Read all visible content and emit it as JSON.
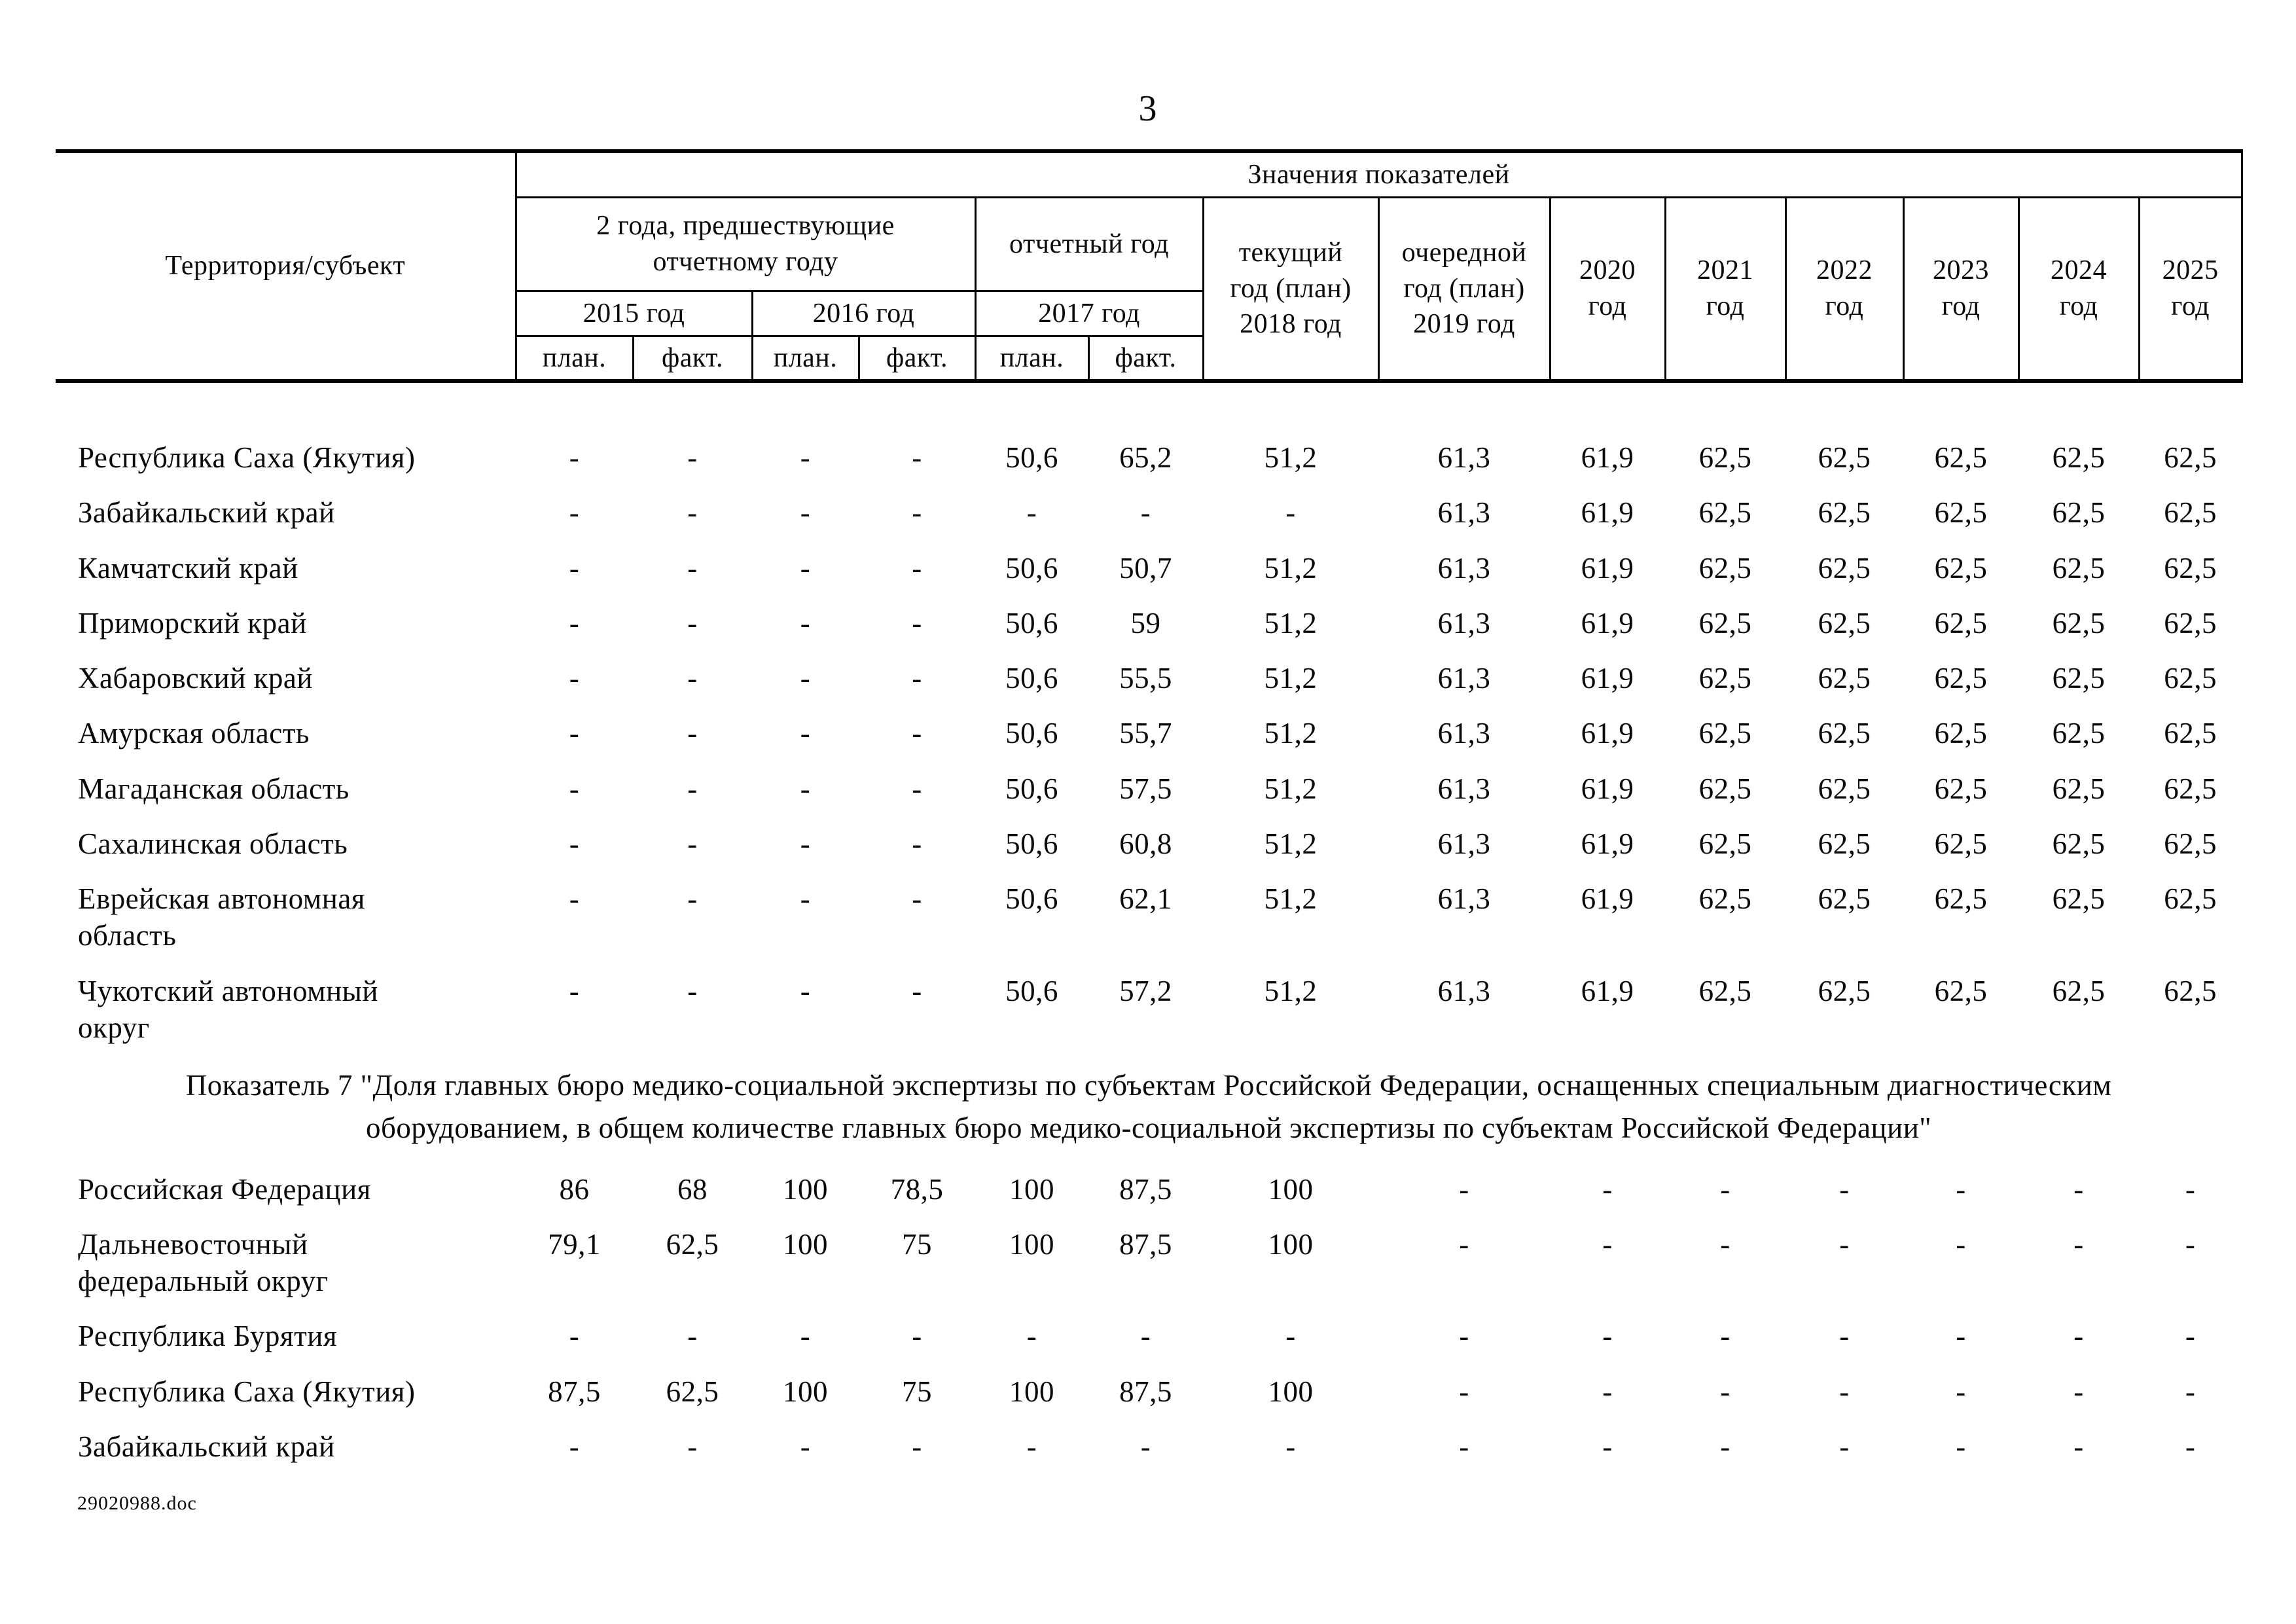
{
  "page": {
    "number": "3",
    "footer": "29020988.doc"
  },
  "header": {
    "territory": "Территория/субъект",
    "values": "Значения показателей",
    "two_years_group": "2 года, предшествующие\nотчетному году",
    "reporting_year_group": "отчетный год",
    "current_year": "текущий\nгод (план)\n2018 год",
    "next_year": "очередной\nгод (план)\n2019 год",
    "sub_years": [
      "2015 год",
      "2016 год",
      "2017 год"
    ],
    "plan": "план.",
    "fact": "факт.",
    "future_years": [
      "2020\nгод",
      "2021\nгод",
      "2022\nгод",
      "2023\nгод",
      "2024\nгод",
      "2025\nгод"
    ]
  },
  "section1": {
    "rows": [
      {
        "name": "Республика Саха (Якутия)",
        "values": [
          "-",
          "-",
          "-",
          "-",
          "50,6",
          "65,2",
          "51,2",
          "61,3",
          "61,9",
          "62,5",
          "62,5",
          "62,5",
          "62,5",
          "62,5"
        ]
      },
      {
        "name": "Забайкальский край",
        "values": [
          "-",
          "-",
          "-",
          "-",
          "-",
          "-",
          "-",
          "61,3",
          "61,9",
          "62,5",
          "62,5",
          "62,5",
          "62,5",
          "62,5"
        ]
      },
      {
        "name": "Камчатский край",
        "values": [
          "-",
          "-",
          "-",
          "-",
          "50,6",
          "50,7",
          "51,2",
          "61,3",
          "61,9",
          "62,5",
          "62,5",
          "62,5",
          "62,5",
          "62,5"
        ]
      },
      {
        "name": "Приморский край",
        "values": [
          "-",
          "-",
          "-",
          "-",
          "50,6",
          "59",
          "51,2",
          "61,3",
          "61,9",
          "62,5",
          "62,5",
          "62,5",
          "62,5",
          "62,5"
        ]
      },
      {
        "name": "Хабаровский край",
        "values": [
          "-",
          "-",
          "-",
          "-",
          "50,6",
          "55,5",
          "51,2",
          "61,3",
          "61,9",
          "62,5",
          "62,5",
          "62,5",
          "62,5",
          "62,5"
        ]
      },
      {
        "name": "Амурская область",
        "values": [
          "-",
          "-",
          "-",
          "-",
          "50,6",
          "55,7",
          "51,2",
          "61,3",
          "61,9",
          "62,5",
          "62,5",
          "62,5",
          "62,5",
          "62,5"
        ]
      },
      {
        "name": "Магаданская область",
        "values": [
          "-",
          "-",
          "-",
          "-",
          "50,6",
          "57,5",
          "51,2",
          "61,3",
          "61,9",
          "62,5",
          "62,5",
          "62,5",
          "62,5",
          "62,5"
        ]
      },
      {
        "name": "Сахалинская область",
        "values": [
          "-",
          "-",
          "-",
          "-",
          "50,6",
          "60,8",
          "51,2",
          "61,3",
          "61,9",
          "62,5",
          "62,5",
          "62,5",
          "62,5",
          "62,5"
        ]
      },
      {
        "name": "Еврейская автономная\nобласть",
        "values": [
          "-",
          "-",
          "-",
          "-",
          "50,6",
          "62,1",
          "51,2",
          "61,3",
          "61,9",
          "62,5",
          "62,5",
          "62,5",
          "62,5",
          "62,5"
        ]
      },
      {
        "name": "Чукотский автономный\nокруг",
        "values": [
          "-",
          "-",
          "-",
          "-",
          "50,6",
          "57,2",
          "51,2",
          "61,3",
          "61,9",
          "62,5",
          "62,5",
          "62,5",
          "62,5",
          "62,5"
        ]
      }
    ]
  },
  "caption": {
    "line1": "Показатель 7 \"Доля главных бюро медико-социальной экспертизы по субъектам Российской Федерации, оснащенных специальным диагностическим",
    "line2": "оборудованием, в общем количестве главных бюро медико-социальной экспертизы по субъектам Российской Федерации\""
  },
  "section2": {
    "rows": [
      {
        "name": "Российская Федерация",
        "values": [
          "86",
          "68",
          "100",
          "78,5",
          "100",
          "87,5",
          "100",
          "-",
          "-",
          "-",
          "-",
          "-",
          "-",
          "-"
        ]
      },
      {
        "name": "Дальневосточный\nфедеральный округ",
        "values": [
          "79,1",
          "62,5",
          "100",
          "75",
          "100",
          "87,5",
          "100",
          "-",
          "-",
          "-",
          "-",
          "-",
          "-",
          "-"
        ]
      },
      {
        "name": "Республика Бурятия",
        "values": [
          "-",
          "-",
          "-",
          "-",
          "-",
          "-",
          "-",
          "-",
          "-",
          "-",
          "-",
          "-",
          "-",
          "-"
        ]
      },
      {
        "name": "Республика Саха (Якутия)",
        "values": [
          "87,5",
          "62,5",
          "100",
          "75",
          "100",
          "87,5",
          "100",
          "-",
          "-",
          "-",
          "-",
          "-",
          "-",
          "-"
        ]
      },
      {
        "name": "Забайкальский край",
        "values": [
          "-",
          "-",
          "-",
          "-",
          "-",
          "-",
          "-",
          "-",
          "-",
          "-",
          "-",
          "-",
          "-",
          "-"
        ]
      }
    ]
  }
}
